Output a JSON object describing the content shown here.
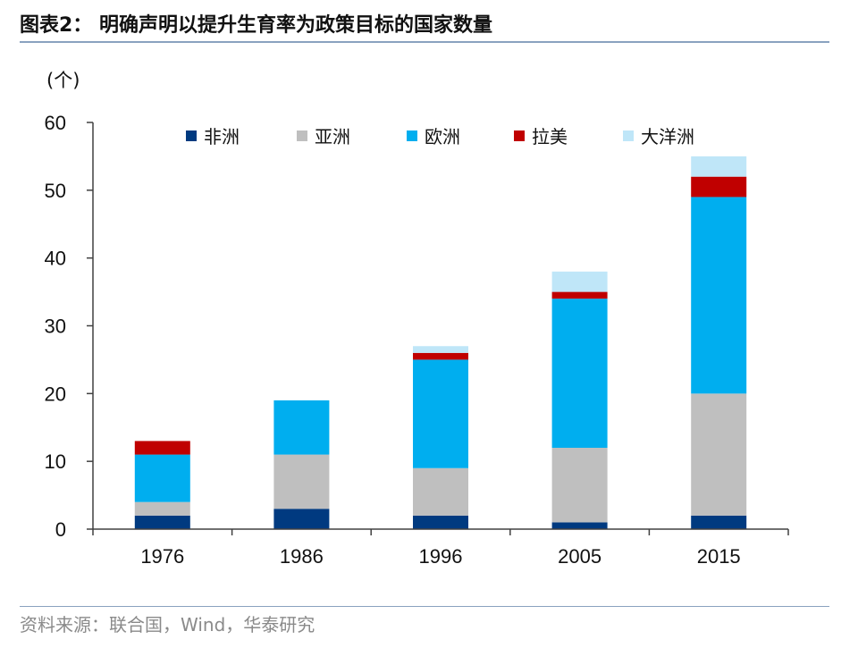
{
  "header": {
    "title": "图表2： 明确声明以提升生育率为政策目标的国家数量"
  },
  "footer": {
    "source": "资料来源：联合国，Wind，华泰研究"
  },
  "colors": {
    "axis": "#404040",
    "text": "#111111",
    "rule": "#8aa2bf"
  },
  "chart_data": {
    "type": "bar",
    "stacked": true,
    "title": "",
    "xlabel": "",
    "ylabel": "(个)",
    "ylim": [
      0,
      60
    ],
    "yticks": [
      0,
      10,
      20,
      30,
      40,
      50,
      60
    ],
    "grid": false,
    "legend_position": "top",
    "categories": [
      "1976",
      "1986",
      "1996",
      "2005",
      "2015"
    ],
    "series": [
      {
        "name": "非洲",
        "color": "#003a80",
        "values": [
          2,
          3,
          2,
          1,
          2
        ]
      },
      {
        "name": "亚洲",
        "color": "#bfbfbf",
        "values": [
          2,
          8,
          7,
          11,
          18
        ]
      },
      {
        "name": "欧洲",
        "color": "#00aeef",
        "values": [
          7,
          8,
          16,
          22,
          29
        ]
      },
      {
        "name": "拉美",
        "color": "#c00000",
        "values": [
          2,
          0,
          1,
          1,
          3
        ]
      },
      {
        "name": "大洋洲",
        "color": "#bfe6f8",
        "values": [
          0,
          0,
          1,
          3,
          3
        ]
      }
    ]
  }
}
